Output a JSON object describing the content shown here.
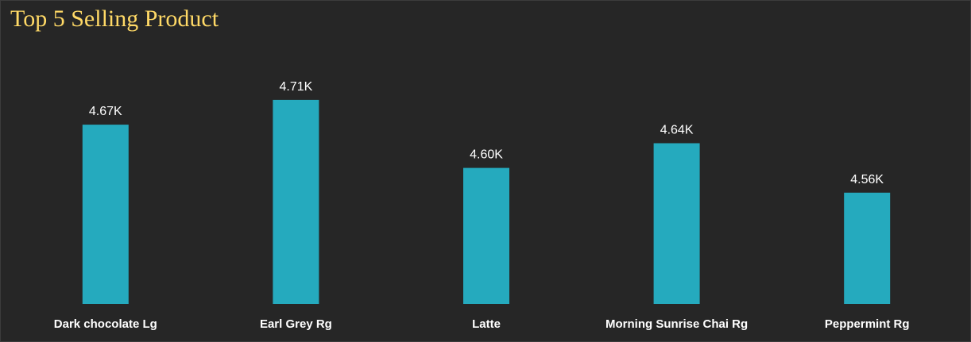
{
  "chart_data": {
    "type": "bar",
    "title": "Top 5 Selling Product",
    "categories": [
      "Dark chocolate Lg",
      "Earl Grey Rg",
      "Latte",
      "Morning Sunrise Chai Rg",
      "Peppermint Rg"
    ],
    "values": [
      4670,
      4710,
      4600,
      4640,
      4560
    ],
    "data_labels": [
      "4.67K",
      "4.71K",
      "4.60K",
      "4.64K",
      "4.56K"
    ],
    "ylim": [
      4380,
      4760
    ],
    "grid": false,
    "legend": "none",
    "bar_color": "#25aabe",
    "background_color": "#262626",
    "title_color": "#ffd966",
    "label_color": "#ffffff"
  }
}
